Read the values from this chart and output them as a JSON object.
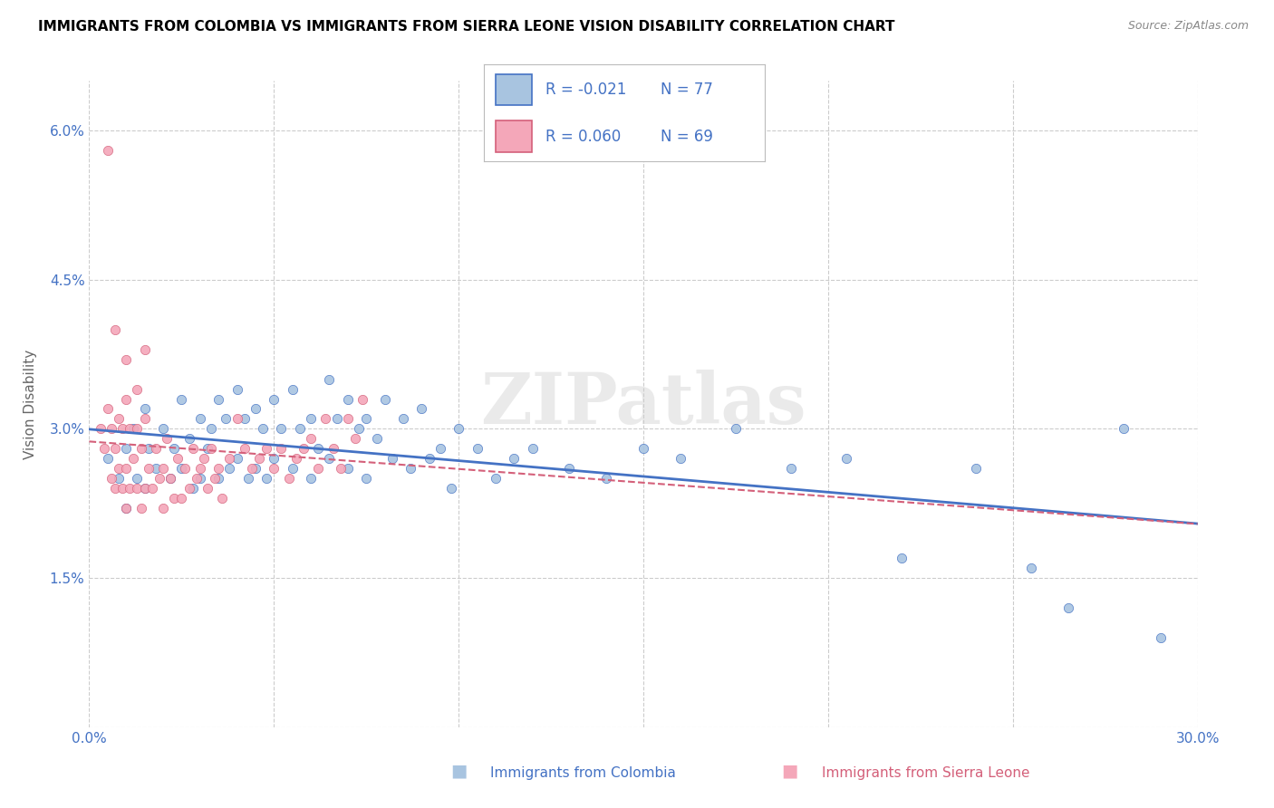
{
  "title": "IMMIGRANTS FROM COLOMBIA VS IMMIGRANTS FROM SIERRA LEONE VISION DISABILITY CORRELATION CHART",
  "source": "Source: ZipAtlas.com",
  "xlabel_colombia": "Immigrants from Colombia",
  "xlabel_sierraleone": "Immigrants from Sierra Leone",
  "ylabel": "Vision Disability",
  "xlim": [
    0.0,
    0.3
  ],
  "ylim": [
    0.0,
    0.065
  ],
  "xticks": [
    0.0,
    0.05,
    0.1,
    0.15,
    0.2,
    0.25,
    0.3
  ],
  "yticks": [
    0.0,
    0.015,
    0.03,
    0.045,
    0.06
  ],
  "ytick_labels": [
    "",
    "1.5%",
    "3.0%",
    "4.5%",
    "6.0%"
  ],
  "legend_R_colombia": "-0.021",
  "legend_N_colombia": "77",
  "legend_R_sierraleone": "0.060",
  "legend_N_sierraleone": "69",
  "color_colombia": "#a8c4e0",
  "color_sierraleone": "#f4a7b9",
  "trendline_color_colombia": "#4472c4",
  "trendline_color_sierraleone": "#d4607a",
  "grid_color": "#cccccc",
  "watermark": "ZIPatlas",
  "colombia_x": [
    0.005,
    0.008,
    0.01,
    0.01,
    0.012,
    0.013,
    0.015,
    0.015,
    0.016,
    0.018,
    0.02,
    0.022,
    0.023,
    0.025,
    0.025,
    0.027,
    0.028,
    0.03,
    0.03,
    0.032,
    0.033,
    0.035,
    0.035,
    0.037,
    0.038,
    0.04,
    0.04,
    0.042,
    0.043,
    0.045,
    0.045,
    0.047,
    0.048,
    0.05,
    0.05,
    0.052,
    0.055,
    0.055,
    0.057,
    0.06,
    0.06,
    0.062,
    0.065,
    0.065,
    0.067,
    0.07,
    0.07,
    0.073,
    0.075,
    0.075,
    0.078,
    0.08,
    0.082,
    0.085,
    0.087,
    0.09,
    0.092,
    0.095,
    0.098,
    0.1,
    0.105,
    0.11,
    0.115,
    0.12,
    0.13,
    0.14,
    0.15,
    0.16,
    0.175,
    0.19,
    0.205,
    0.22,
    0.24,
    0.255,
    0.265,
    0.28,
    0.29
  ],
  "colombia_y": [
    0.027,
    0.025,
    0.028,
    0.022,
    0.03,
    0.025,
    0.032,
    0.024,
    0.028,
    0.026,
    0.03,
    0.025,
    0.028,
    0.033,
    0.026,
    0.029,
    0.024,
    0.031,
    0.025,
    0.028,
    0.03,
    0.033,
    0.025,
    0.031,
    0.026,
    0.034,
    0.027,
    0.031,
    0.025,
    0.032,
    0.026,
    0.03,
    0.025,
    0.033,
    0.027,
    0.03,
    0.034,
    0.026,
    0.03,
    0.031,
    0.025,
    0.028,
    0.035,
    0.027,
    0.031,
    0.033,
    0.026,
    0.03,
    0.031,
    0.025,
    0.029,
    0.033,
    0.027,
    0.031,
    0.026,
    0.032,
    0.027,
    0.028,
    0.024,
    0.03,
    0.028,
    0.025,
    0.027,
    0.028,
    0.026,
    0.025,
    0.028,
    0.027,
    0.03,
    0.026,
    0.027,
    0.017,
    0.026,
    0.016,
    0.012,
    0.03,
    0.009
  ],
  "sierraleone_x": [
    0.003,
    0.004,
    0.005,
    0.006,
    0.006,
    0.007,
    0.007,
    0.008,
    0.008,
    0.009,
    0.009,
    0.01,
    0.01,
    0.01,
    0.011,
    0.011,
    0.012,
    0.013,
    0.013,
    0.014,
    0.014,
    0.015,
    0.015,
    0.016,
    0.017,
    0.018,
    0.019,
    0.02,
    0.02,
    0.021,
    0.022,
    0.023,
    0.024,
    0.025,
    0.026,
    0.027,
    0.028,
    0.029,
    0.03,
    0.031,
    0.032,
    0.033,
    0.034,
    0.035,
    0.036,
    0.038,
    0.04,
    0.042,
    0.044,
    0.046,
    0.048,
    0.05,
    0.052,
    0.054,
    0.056,
    0.058,
    0.06,
    0.062,
    0.064,
    0.066,
    0.068,
    0.07,
    0.072,
    0.074,
    0.005,
    0.007,
    0.01,
    0.013,
    0.015
  ],
  "sierraleone_y": [
    0.03,
    0.028,
    0.032,
    0.03,
    0.025,
    0.028,
    0.024,
    0.031,
    0.026,
    0.03,
    0.024,
    0.033,
    0.026,
    0.022,
    0.03,
    0.024,
    0.027,
    0.03,
    0.024,
    0.028,
    0.022,
    0.031,
    0.024,
    0.026,
    0.024,
    0.028,
    0.025,
    0.026,
    0.022,
    0.029,
    0.025,
    0.023,
    0.027,
    0.023,
    0.026,
    0.024,
    0.028,
    0.025,
    0.026,
    0.027,
    0.024,
    0.028,
    0.025,
    0.026,
    0.023,
    0.027,
    0.031,
    0.028,
    0.026,
    0.027,
    0.028,
    0.026,
    0.028,
    0.025,
    0.027,
    0.028,
    0.029,
    0.026,
    0.031,
    0.028,
    0.026,
    0.031,
    0.029,
    0.033,
    0.058,
    0.04,
    0.037,
    0.034,
    0.038
  ]
}
